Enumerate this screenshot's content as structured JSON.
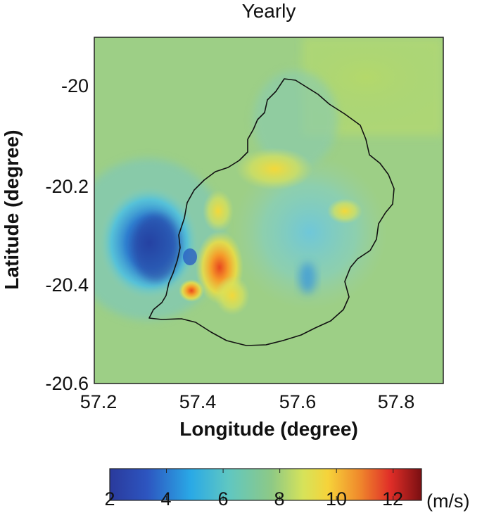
{
  "title": "Yearly",
  "axes": {
    "xlabel": "Longitude (degree)",
    "ylabel": "Latitude (degree)",
    "xticks": [
      "57.2",
      "57.4",
      "57.6",
      "57.8"
    ],
    "yticks": [
      "-20",
      "-20.2",
      "-20.4",
      "-20.6"
    ]
  },
  "colorbar": {
    "ticks": [
      "2",
      "4",
      "6",
      "8",
      "10",
      "12"
    ],
    "unit": "(m/s)",
    "range": [
      2,
      13
    ]
  },
  "map": {
    "xlim": [
      57.2,
      57.9
    ],
    "ylim": [
      -20.6,
      -19.9
    ],
    "background_value": 7.4,
    "features": [
      {
        "name": "wake-low-west",
        "lon": 57.3,
        "lat": -20.34,
        "value": 3.0
      },
      {
        "name": "peak-southwest",
        "lon": 57.45,
        "lat": -20.37,
        "value": 10.6
      },
      {
        "name": "high-southwest",
        "lon": 57.39,
        "lat": -20.41,
        "value": 9.6
      },
      {
        "name": "highland-north",
        "lon": 57.55,
        "lat": -20.2,
        "value": 8.5
      },
      {
        "name": "low-east",
        "lon": 57.65,
        "lat": -20.35,
        "value": 5.8
      }
    ]
  }
}
